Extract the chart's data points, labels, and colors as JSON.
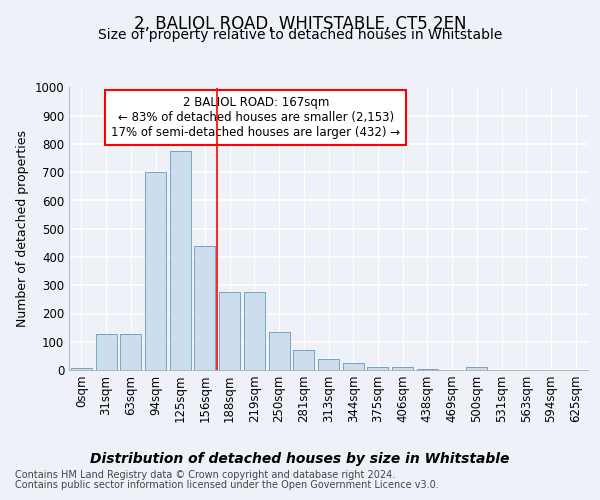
{
  "title": "2, BALIOL ROAD, WHITSTABLE, CT5 2EN",
  "subtitle": "Size of property relative to detached houses in Whitstable",
  "xlabel": "Distribution of detached houses by size in Whitstable",
  "ylabel": "Number of detached properties",
  "bar_color": "#ccdded",
  "bar_edge_color": "#6699bb",
  "categories": [
    "0sqm",
    "31sqm",
    "63sqm",
    "94sqm",
    "125sqm",
    "156sqm",
    "188sqm",
    "219sqm",
    "250sqm",
    "281sqm",
    "313sqm",
    "344sqm",
    "375sqm",
    "406sqm",
    "438sqm",
    "469sqm",
    "500sqm",
    "531sqm",
    "563sqm",
    "594sqm",
    "625sqm"
  ],
  "values": [
    8,
    128,
    128,
    700,
    775,
    440,
    275,
    275,
    135,
    70,
    40,
    25,
    12,
    12,
    5,
    0,
    10,
    0,
    0,
    0,
    0
  ],
  "ylim": [
    0,
    1000
  ],
  "yticks": [
    0,
    100,
    200,
    300,
    400,
    500,
    600,
    700,
    800,
    900,
    1000
  ],
  "red_line_x": 5.5,
  "annotation_text": "2 BALIOL ROAD: 167sqm\n← 83% of detached houses are smaller (2,153)\n17% of semi-detached houses are larger (432) →",
  "background_color": "#eef2f8",
  "grid_color": "#ffffff",
  "title_fontsize": 12,
  "subtitle_fontsize": 10,
  "xlabel_fontsize": 10,
  "ylabel_fontsize": 9,
  "tick_fontsize": 8.5,
  "footer_line1": "Contains HM Land Registry data © Crown copyright and database right 2024.",
  "footer_line2": "Contains public sector information licensed under the Open Government Licence v3.0."
}
